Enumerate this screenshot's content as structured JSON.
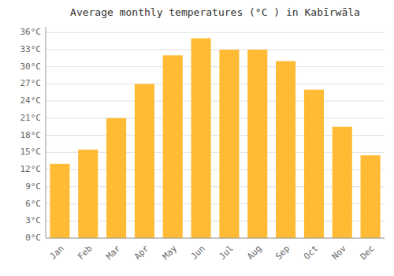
{
  "chart_data": {
    "type": "bar",
    "title": "Average monthly temperatures (°C ) in Kabīrwāla",
    "categories": [
      "Jan",
      "Feb",
      "Mar",
      "Apr",
      "May",
      "Jun",
      "Jul",
      "Aug",
      "Sep",
      "Oct",
      "Nov",
      "Dec"
    ],
    "values": [
      13,
      15.5,
      21,
      27,
      32,
      35,
      33,
      33,
      31,
      26,
      19.5,
      14.5
    ],
    "color": "#FFBB33",
    "ylim": [
      0,
      37
    ],
    "yticks": [
      {
        "value": 0,
        "label": "0°C"
      },
      {
        "value": 3,
        "label": "3°C"
      },
      {
        "value": 6,
        "label": "6°C"
      },
      {
        "value": 9,
        "label": "9°C"
      },
      {
        "value": 12,
        "label": "12°C"
      },
      {
        "value": 15,
        "label": "15°C"
      },
      {
        "value": 18,
        "label": "18°C"
      },
      {
        "value": 21,
        "label": "21°C"
      },
      {
        "value": 24,
        "label": "24°C"
      },
      {
        "value": 27,
        "label": "27°C"
      },
      {
        "value": 30,
        "label": "30°C"
      },
      {
        "value": 33,
        "label": "33°C"
      },
      {
        "value": 36,
        "label": "36°C"
      }
    ],
    "grid": true
  }
}
